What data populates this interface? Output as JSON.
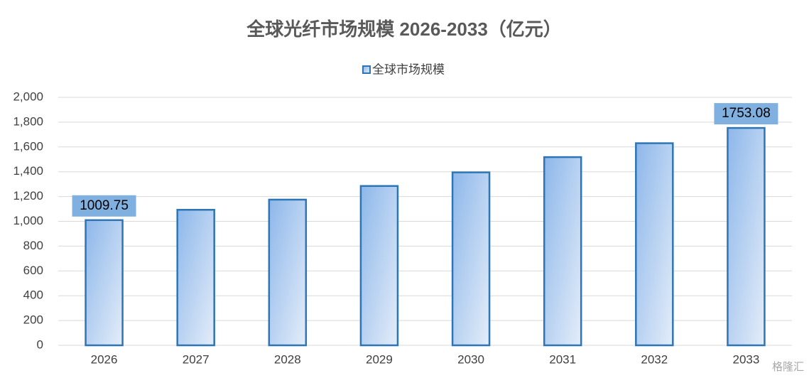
{
  "chart_data": {
    "type": "bar",
    "title": "全球光纤市场规模 2026-2033（亿元）",
    "categories": [
      "2026",
      "2027",
      "2028",
      "2029",
      "2030",
      "2031",
      "2032",
      "2033"
    ],
    "series": [
      {
        "name": "全球市场规模",
        "color": "#2e75b6",
        "values": [
          1009.75,
          1093,
          1175,
          1285,
          1395,
          1518,
          1630,
          1753.08
        ],
        "value_labels": [
          "1009.75",
          null,
          null,
          null,
          null,
          null,
          null,
          "1753.08"
        ]
      }
    ],
    "ylim": [
      0,
      2000
    ],
    "yticks": [
      0,
      200,
      400,
      600,
      800,
      {
        "value": 1000,
        "label": "1,000"
      },
      {
        "value": 1200,
        "label": "1,200"
      },
      {
        "value": 1400,
        "label": "1,400"
      },
      {
        "value": 1600,
        "label": "1,600"
      },
      {
        "value": 1800,
        "label": "1,800"
      },
      {
        "value": 2000,
        "label": "2,000"
      }
    ],
    "grid": true,
    "legend": "top",
    "watermark": "格隆汇"
  }
}
